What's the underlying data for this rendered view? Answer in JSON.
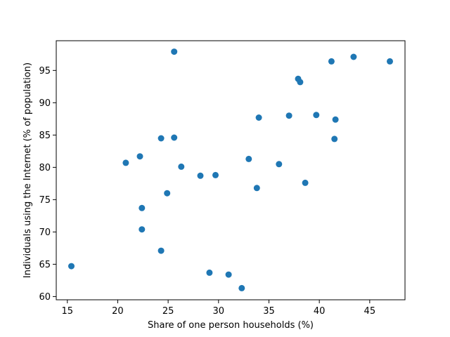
{
  "chart_data": {
    "type": "scatter",
    "xlabel": "Share of one person households (%)",
    "ylabel": "Individuals using the Internet (% of population)",
    "xlim": [
      13.9,
      48.5
    ],
    "ylim": [
      59.5,
      99.6
    ],
    "xticks": [
      15,
      20,
      25,
      30,
      35,
      40,
      45
    ],
    "yticks": [
      60,
      65,
      70,
      75,
      80,
      85,
      90,
      95
    ],
    "grid": false,
    "color": "#1f77b4",
    "points": [
      {
        "x": 15.4,
        "y": 64.7
      },
      {
        "x": 20.8,
        "y": 80.7
      },
      {
        "x": 22.2,
        "y": 81.7
      },
      {
        "x": 22.4,
        "y": 73.7
      },
      {
        "x": 22.4,
        "y": 70.4
      },
      {
        "x": 24.3,
        "y": 84.5
      },
      {
        "x": 24.3,
        "y": 67.1
      },
      {
        "x": 24.9,
        "y": 76.0
      },
      {
        "x": 25.6,
        "y": 84.6
      },
      {
        "x": 25.6,
        "y": 97.9
      },
      {
        "x": 26.3,
        "y": 80.1
      },
      {
        "x": 28.2,
        "y": 78.7
      },
      {
        "x": 29.1,
        "y": 63.7
      },
      {
        "x": 29.7,
        "y": 78.8
      },
      {
        "x": 31.0,
        "y": 63.4
      },
      {
        "x": 32.3,
        "y": 61.3
      },
      {
        "x": 33.0,
        "y": 81.3
      },
      {
        "x": 33.8,
        "y": 76.8
      },
      {
        "x": 34.0,
        "y": 87.7
      },
      {
        "x": 36.0,
        "y": 80.5
      },
      {
        "x": 37.0,
        "y": 88.0
      },
      {
        "x": 37.9,
        "y": 93.7
      },
      {
        "x": 38.1,
        "y": 93.2
      },
      {
        "x": 38.6,
        "y": 77.6
      },
      {
        "x": 39.7,
        "y": 88.1
      },
      {
        "x": 41.2,
        "y": 96.4
      },
      {
        "x": 41.5,
        "y": 84.4
      },
      {
        "x": 41.6,
        "y": 87.4
      },
      {
        "x": 43.4,
        "y": 97.1
      },
      {
        "x": 47.0,
        "y": 96.4
      }
    ]
  }
}
